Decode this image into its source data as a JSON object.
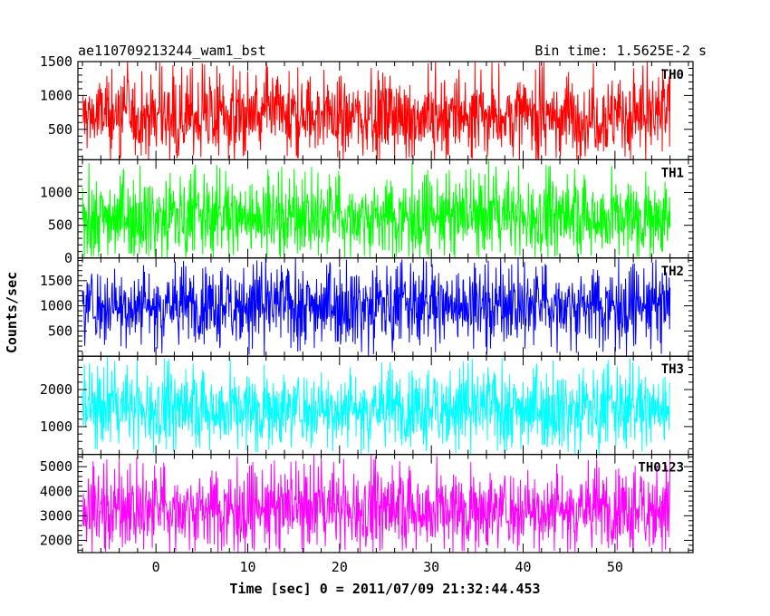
{
  "chart_data": {
    "type": "line",
    "title": "ae110709213244_wam1_bst",
    "subtitle": "Bin time: 1.5625E-2 s",
    "xlabel": "Time [sec] 0 = 2011/07/09 21:32:44.453",
    "ylabel": "Counts/sec",
    "xlim": [
      -8.5,
      58.5
    ],
    "x_ticks": [
      0,
      10,
      20,
      30,
      40,
      50
    ],
    "data_x_range": [
      -8.0,
      56.0
    ],
    "bin_time_s": 0.015625,
    "grid": false,
    "panels": [
      {
        "name": "TH0",
        "color": "#ff0000",
        "ylim": [
          50,
          1500
        ],
        "y_ticks": [
          500,
          1000,
          1500
        ],
        "mean": 700,
        "low": 120,
        "high": 1350,
        "spike_max": 1500
      },
      {
        "name": "TH1",
        "color": "#00ff00",
        "ylim": [
          0,
          1500
        ],
        "y_ticks": [
          0,
          500,
          1000
        ],
        "mean": 640,
        "low": 60,
        "high": 1250,
        "spike_max": 1450
      },
      {
        "name": "TH2",
        "color": "#0000ff",
        "ylim": [
          0,
          1950
        ],
        "y_ticks": [
          500,
          1000,
          1500
        ],
        "mean": 1020,
        "low": 230,
        "high": 1750,
        "spike_max": 1950
      },
      {
        "name": "TH3",
        "color": "#00ffff",
        "ylim": [
          250,
          2900
        ],
        "y_ticks": [
          1000,
          2000
        ],
        "mean": 1500,
        "low": 450,
        "high": 2500,
        "spike_max": 2850
      },
      {
        "name": "TH0123",
        "color": "#ff00ff",
        "ylim": [
          1500,
          5500
        ],
        "y_ticks": [
          2000,
          3000,
          4000,
          5000
        ],
        "mean": 3300,
        "low": 1700,
        "high": 5000,
        "spike_max": 5400
      }
    ]
  }
}
